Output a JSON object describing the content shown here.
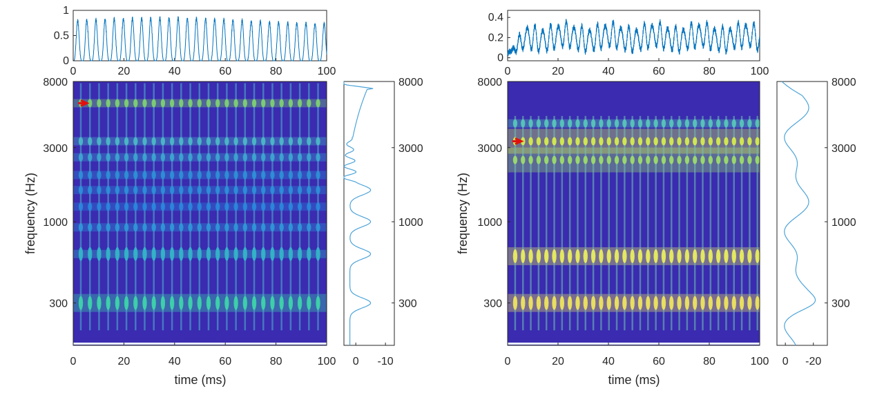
{
  "colors": {
    "waveform": "#0072bd",
    "spectrum": "#4da3d9",
    "axis": "#262626",
    "arrow": "#e01010",
    "colormap": "parula"
  },
  "chart_data": [
    {
      "id": "left",
      "type": "heatmap",
      "subtype": "spectrogram",
      "xlabel": "time (ms)",
      "ylabel": "frequency (Hz)",
      "x_ticks": [
        "0",
        "20",
        "40",
        "60",
        "80",
        "100"
      ],
      "y_ticks": [
        "300",
        "1000",
        "3000",
        "8000"
      ],
      "xlim": [
        0,
        100
      ],
      "ylim_hz": [
        160,
        8000
      ],
      "y_scale": "log",
      "marker_arrow": {
        "time_ms": 3,
        "frequency_hz": 5800
      },
      "pulse_period_ms": 3.6,
      "bands_hz": [
        300,
        620,
        920,
        1250,
        1600,
        2000,
        2600,
        3300,
        5800
      ],
      "waveform": {
        "type": "line",
        "x_ticks": [
          "0",
          "20",
          "40",
          "60",
          "80",
          "100"
        ],
        "y_ticks": [
          "0",
          "0.5",
          "1"
        ],
        "xlim": [
          0,
          100
        ],
        "ylim": [
          0,
          1
        ],
        "peak_amplitude": 0.85,
        "period_ms": 3.6
      },
      "spectrum": {
        "type": "line",
        "x_ticks": [
          "0",
          "-10"
        ],
        "xlim_db": [
          4,
          -13
        ],
        "peaks_hz": [
          300,
          620,
          1000,
          1600
        ],
        "y_ticks": [
          "300",
          "1000",
          "3000",
          "8000"
        ]
      }
    },
    {
      "id": "right",
      "type": "heatmap",
      "subtype": "spectrogram",
      "xlabel": "time (ms)",
      "ylabel": "frequency (Hz)",
      "x_ticks": [
        "0",
        "20",
        "40",
        "60",
        "80",
        "100"
      ],
      "y_ticks": [
        "300",
        "1000",
        "3000",
        "8000"
      ],
      "xlim": [
        0,
        100
      ],
      "ylim_hz": [
        160,
        8000
      ],
      "y_scale": "log",
      "marker_arrow": {
        "time_ms": 3,
        "frequency_hz": 3300
      },
      "pulse_period_ms": 3.1,
      "bands_hz": [
        300,
        600,
        2500,
        3300,
        4300
      ],
      "waveform": {
        "type": "line",
        "x_ticks": [
          "0",
          "20",
          "40",
          "60",
          "80",
          "100"
        ],
        "y_ticks": [
          "0",
          "0.2",
          "0.4"
        ],
        "xlim": [
          0,
          100
        ],
        "ylim": [
          -0.03,
          0.47
        ],
        "peak_amplitude": 0.3,
        "period_ms": 3.1
      },
      "spectrum": {
        "type": "line",
        "x_ticks": [
          "0",
          "-20"
        ],
        "xlim_db": [
          6,
          -30
        ],
        "peaks_hz": [
          300
        ],
        "y_ticks": [
          "300",
          "1000",
          "3000",
          "8000"
        ]
      }
    }
  ]
}
